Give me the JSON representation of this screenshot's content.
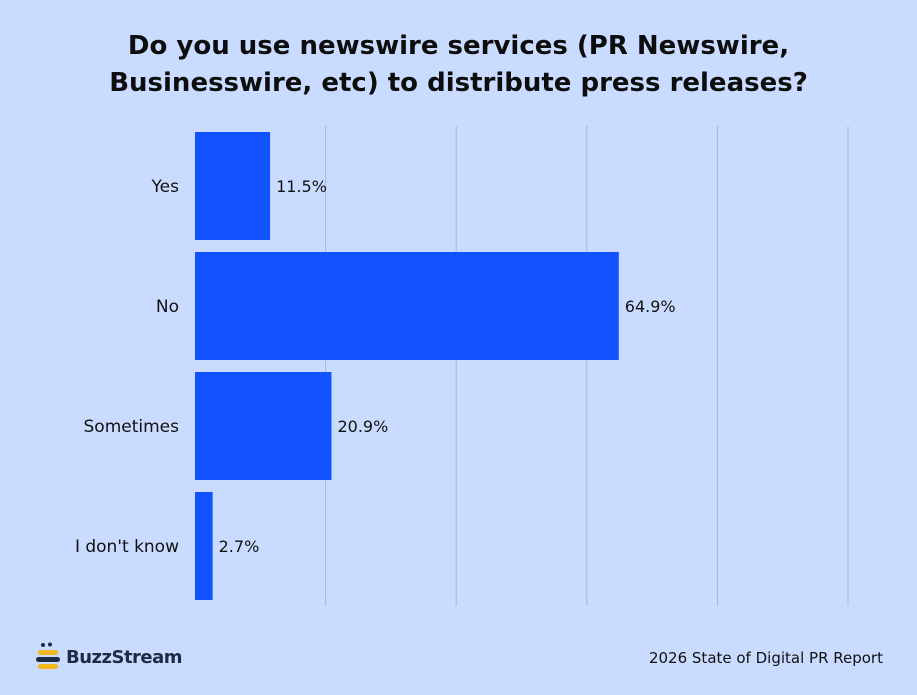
{
  "chart_data": {
    "type": "bar",
    "orientation": "horizontal",
    "title_lines": [
      "Do you use newswire services (PR Newswire,",
      "Businesswire, etc) to distribute press releases?"
    ],
    "categories": [
      "Yes",
      "No",
      "Sometimes",
      "I don't know"
    ],
    "values": [
      11.5,
      64.9,
      20.9,
      2.7
    ],
    "value_labels": [
      "11.5%",
      "64.9%",
      "20.9%",
      "2.7%"
    ],
    "xlim": [
      0,
      100
    ],
    "grid": true,
    "bar_color": "#1352ff",
    "grid_color": "#a9b6cf"
  },
  "footer": {
    "brand": "BuzzStream",
    "source": "2026 State of Digital PR Report"
  },
  "colors": {
    "background": "#c9dcff",
    "logo_yellow": "#f5b81c",
    "logo_dark": "#1f2a44"
  }
}
